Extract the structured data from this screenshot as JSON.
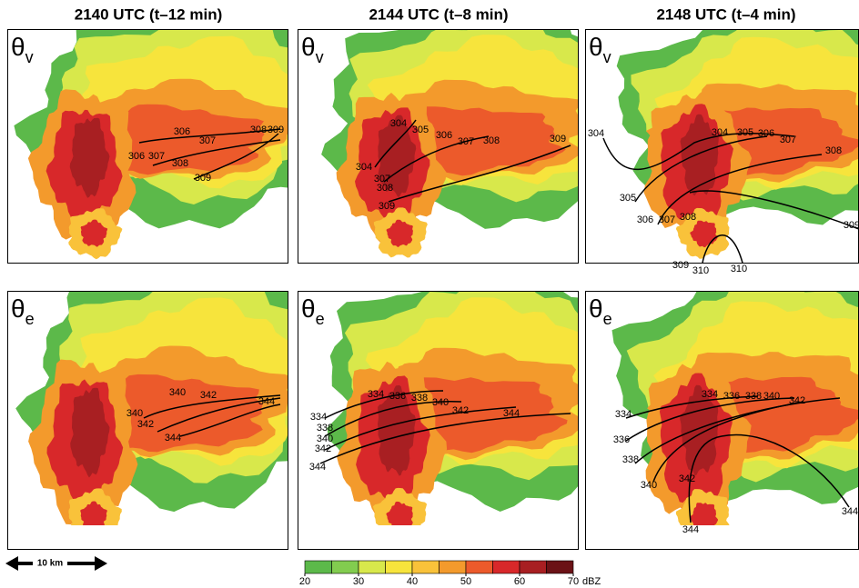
{
  "columns": [
    "2140 UTC (t–12 min)",
    "2144 UTC (t–8 min)",
    "2148 UTC (t–4 min)"
  ],
  "rows": [
    {
      "symbol": "θ",
      "subscript": "v",
      "panels": [
        {
          "contour_labels": [
            306,
            307,
            306,
            307,
            308,
            308,
            309,
            309
          ]
        },
        {
          "contour_labels": [
            304,
            305,
            306,
            307,
            308,
            309,
            304,
            307,
            308,
            309
          ]
        },
        {
          "contour_labels": [
            304,
            304,
            305,
            306,
            307,
            308,
            305,
            306,
            307,
            308,
            309,
            310,
            310,
            309
          ]
        }
      ]
    },
    {
      "symbol": "θ",
      "subscript": "e",
      "panels": [
        {
          "contour_labels": [
            340,
            342,
            340,
            342,
            344,
            344
          ]
        },
        {
          "contour_labels": [
            334,
            336,
            338,
            340,
            342,
            344,
            334,
            338,
            340,
            342,
            344
          ]
        },
        {
          "contour_labels": [
            334,
            336,
            338,
            340,
            342,
            334,
            336,
            338,
            340,
            342,
            344,
            344
          ]
        }
      ]
    }
  ],
  "colorbar": {
    "ticks": [
      20,
      30,
      40,
      50,
      60,
      70
    ],
    "unit": "dBZ",
    "colors": [
      "#5cb94a",
      "#82cc4f",
      "#d8e84b",
      "#f7e43c",
      "#f9c23a",
      "#f39a2c",
      "#ec5a2b",
      "#d8282a",
      "#a81f22",
      "#6b1216"
    ]
  },
  "scale_bar": "10 km"
}
